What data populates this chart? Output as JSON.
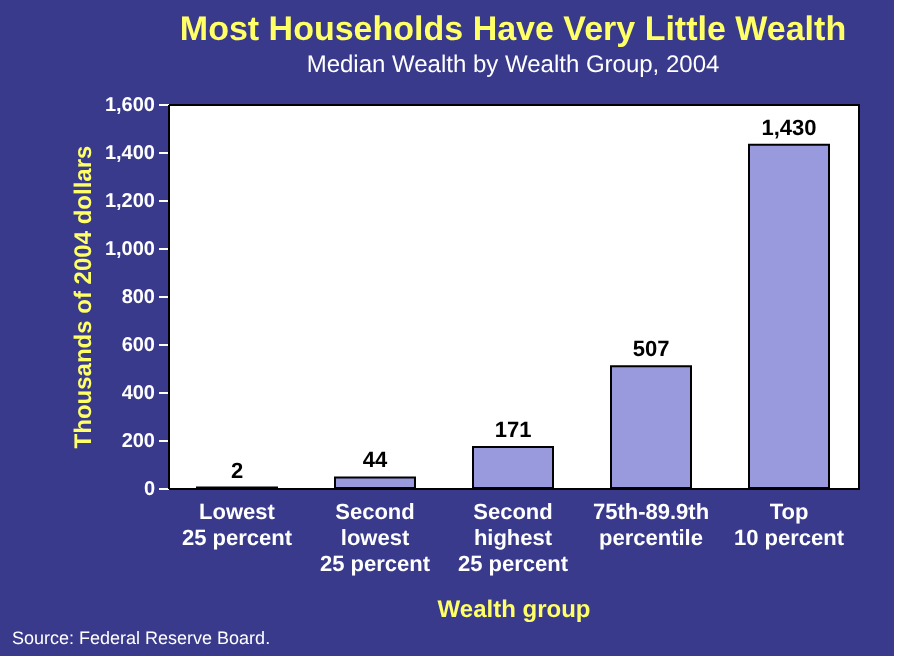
{
  "chart_data": {
    "type": "bar",
    "title": "Most Households Have Very Little Wealth",
    "subtitle": "Median Wealth by Wealth Group, 2004",
    "xlabel": "Wealth group",
    "ylabel": "Thousands of 2004 dollars",
    "categories": [
      "Lowest\n25 percent",
      "Second\nlowest\n25 percent",
      "Second\nhighest\n25 percent",
      "75th-89.9th\npercentile",
      "Top\n10 percent"
    ],
    "values": [
      2,
      44,
      171,
      507,
      1430
    ],
    "color": "#9999dd",
    "value_labels": [
      "2",
      "44",
      "171",
      "507",
      "1,430"
    ],
    "ylim": [
      0,
      1600
    ],
    "yticks": [
      0,
      200,
      400,
      600,
      800,
      {
        "value": 1000,
        "label": "1,000"
      },
      {
        "value": 1200,
        "label": "1,200"
      },
      {
        "value": 1400,
        "label": "1,400"
      },
      {
        "value": 1600,
        "label": "1,600"
      }
    ],
    "grid": false,
    "annotations": [
      "Source: Federal Reserve Board."
    ]
  }
}
